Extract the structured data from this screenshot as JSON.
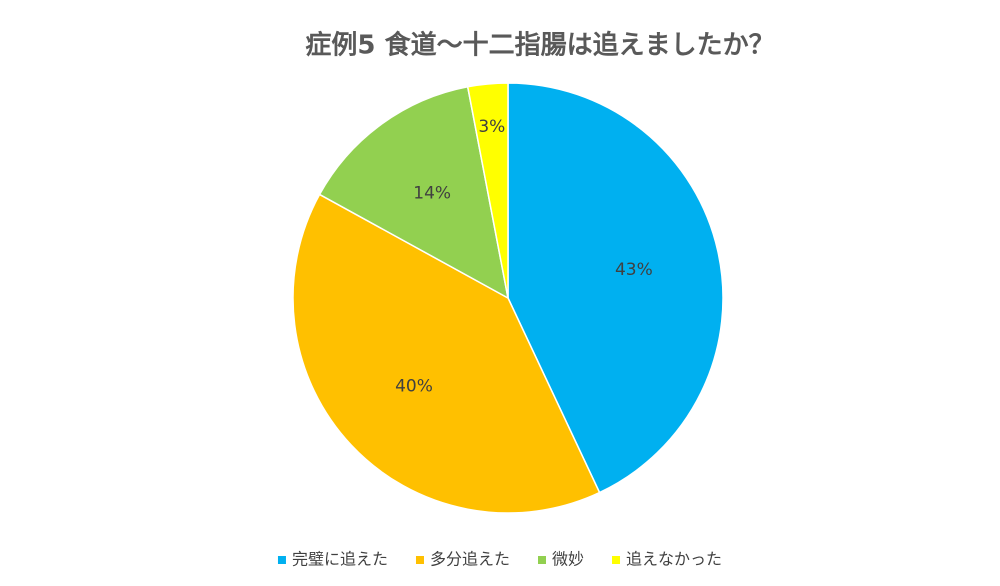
{
  "chart_data": {
    "type": "pie",
    "title": "症例5  食道〜十二指腸は追えましたか？",
    "categories": [
      "完璧に追えた",
      "多分追えた",
      "微妙",
      "追えなかった"
    ],
    "values": [
      43,
      40,
      14,
      3
    ],
    "value_labels": [
      "43%",
      "40%",
      "14%",
      "3%"
    ],
    "colors": [
      "#00b0f0",
      "#ffc000",
      "#92d050",
      "#ffff00"
    ],
    "legend": "bottom"
  }
}
